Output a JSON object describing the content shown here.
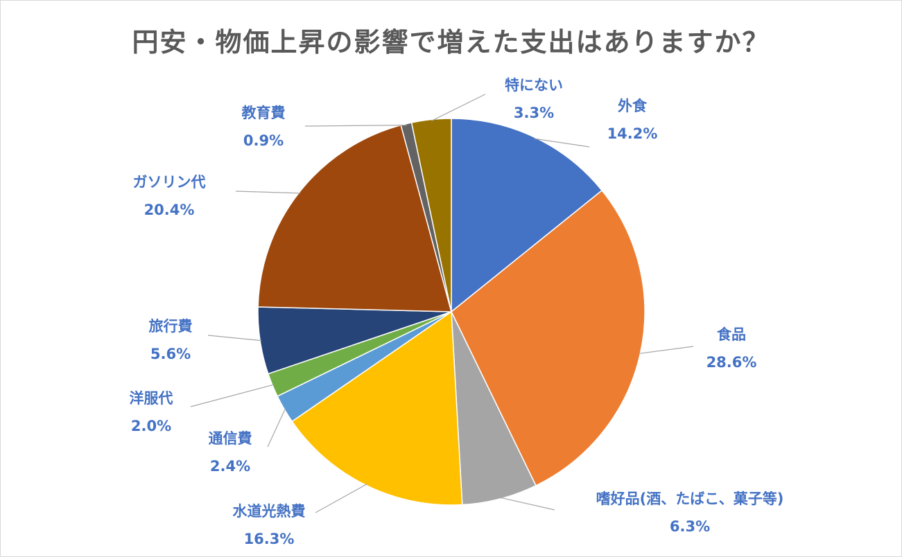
{
  "chart_data": {
    "type": "pie",
    "title": "円安・物価上昇の影響で増えた支出はありますか？",
    "unit": "%",
    "start_angle_deg": 0,
    "direction": "clockwise",
    "slices": [
      {
        "label": "外食",
        "value": 14.2,
        "pct_text": "14.2%",
        "color": "#4472c4"
      },
      {
        "label": "食品",
        "value": 28.6,
        "pct_text": "28.6%",
        "color": "#ed7d31"
      },
      {
        "label": "嗜好品(酒、たばこ、菓子等)",
        "value": 6.3,
        "pct_text": "6.3%",
        "color": "#a5a5a5"
      },
      {
        "label": "水道光熱費",
        "value": 16.3,
        "pct_text": "16.3%",
        "color": "#ffc000"
      },
      {
        "label": "通信費",
        "value": 2.4,
        "pct_text": "2.4%",
        "color": "#5b9bd5"
      },
      {
        "label": "洋服代",
        "value": 2.0,
        "pct_text": "2.0%",
        "color": "#70ad47"
      },
      {
        "label": "旅行費",
        "value": 5.6,
        "pct_text": "5.6%",
        "color": "#264478"
      },
      {
        "label": "ガソリン代",
        "value": 20.4,
        "pct_text": "20.4%",
        "color": "#9e480e"
      },
      {
        "label": "教育費",
        "value": 0.9,
        "pct_text": "0.9%",
        "color": "#636363"
      },
      {
        "label": "特にない",
        "value": 3.3,
        "pct_text": "3.3%",
        "color": "#997300"
      }
    ],
    "label_color": "#4472c4",
    "leader_line_color": "#a6a6a6",
    "slice_border_color": "#ffffff"
  }
}
